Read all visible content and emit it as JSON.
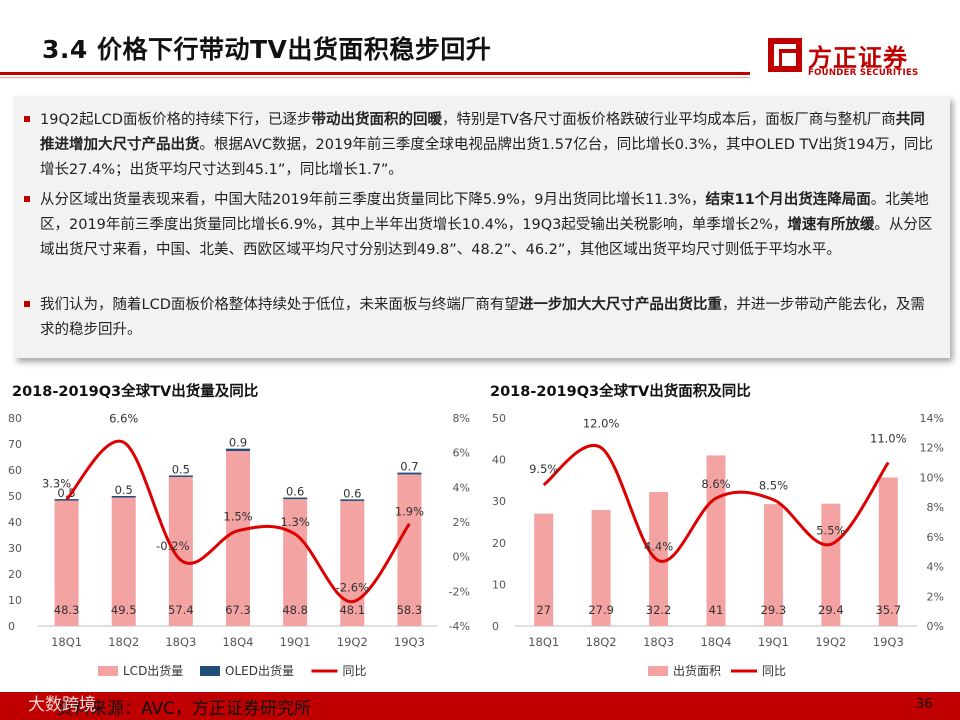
{
  "title": "3.4 价格下行带动TV出货面积稳步回升",
  "logo": {
    "cn": "方正证券",
    "en": "FOUNDER SECURITIES"
  },
  "bullets": [
    {
      "parts": [
        {
          "t": "19Q2起LCD面板价格的持续下行，已逐步"
        },
        {
          "t": "带动出货面积的回暖",
          "b": true
        },
        {
          "t": "，特别是TV各尺寸面板价格跌破行业平均成本后，面板厂商与整机厂商"
        },
        {
          "t": "共同推进增加大尺寸产品出货",
          "b": true
        },
        {
          "t": "。根据AVC数据，2019年前三季度全球电视品牌出货1.57亿台，同比增长0.3%，其中OLED TV出货194万，同比增长27.4%；出货平均尺寸达到45.1”，同比增长1.7”。"
        }
      ]
    },
    {
      "parts": [
        {
          "t": "从分区域出货量表现来看，中国大陆2019年前三季度出货量同比下降5.9%，9月出货同比增长11.3%，"
        },
        {
          "t": "结束11个月出货连降局面",
          "b": true
        },
        {
          "t": "。北美地区，2019年前三季度出货量同比增长6.9%，其中上半年出货增长10.4%，19Q3起受输出关税影响，单季增长2%，"
        },
        {
          "t": "增速有所放缓",
          "b": true
        },
        {
          "t": "。从分区域出货尺寸来看，中国、北美、西欧区域平均尺寸分别达到49.8”、48.2”、46.2”，其他区域出货平均尺寸则低于平均水平。"
        }
      ]
    },
    {
      "parts": [
        {
          "t": "我们认为，随着LCD面板价格整体持续处于低位，未来面板与终端厂商有望"
        },
        {
          "t": "进一步加大大尺寸产品出货比重",
          "b": true
        },
        {
          "t": "，并进一步带动产能去化，及需求的稳步回升。"
        }
      ]
    }
  ],
  "footer": {
    "source": "资料来源：AVC，方正证券研究所",
    "watermark": "大数跨境",
    "page": "36"
  },
  "colors": {
    "accent": "#c00000",
    "bar_pink": "#f4a3a3",
    "bar_oled": "#1f4e79",
    "line_red": "#dd0000"
  },
  "chart_data": [
    {
      "type": "bar",
      "title": "2018-2019Q3全球TV出货量及同比",
      "categories": [
        "18Q1",
        "18Q2",
        "18Q3",
        "18Q4",
        "19Q1",
        "19Q2",
        "19Q3"
      ],
      "series": [
        {
          "name": "LCD出货量",
          "kind": "bar",
          "axis": "left",
          "values": [
            48.3,
            49.5,
            57.4,
            67.3,
            48.8,
            48.1,
            58.3
          ]
        },
        {
          "name": "OLED出货量",
          "kind": "bar-stacked",
          "axis": "left",
          "values": [
            0.5,
            0.5,
            0.5,
            0.9,
            0.6,
            0.6,
            0.7
          ]
        },
        {
          "name": "同比",
          "kind": "line",
          "axis": "right",
          "values": [
            3.3,
            6.6,
            -0.2,
            1.5,
            1.3,
            -2.6,
            1.9
          ],
          "labels": [
            "3.3%",
            "6.6%",
            "-0.2%",
            "1.5%",
            "1.3%",
            "-2.6%",
            "1.9%"
          ]
        }
      ],
      "left_axis": {
        "min": 0,
        "max": 80,
        "ticks": [
          "0",
          "10",
          "20",
          "30",
          "40",
          "50",
          "60",
          "70",
          "80"
        ]
      },
      "right_axis": {
        "min": -4,
        "max": 8,
        "ticks": [
          "-4%",
          "-2%",
          "0%",
          "2%",
          "4%",
          "6%",
          "8%"
        ]
      },
      "legend": "bottom"
    },
    {
      "type": "bar",
      "title": "2018-2019Q3全球TV出货面积及同比",
      "categories": [
        "18Q1",
        "18Q2",
        "18Q3",
        "18Q4",
        "19Q1",
        "19Q2",
        "19Q3"
      ],
      "series": [
        {
          "name": "出货面积",
          "kind": "bar",
          "axis": "left",
          "values": [
            27,
            27.9,
            32.2,
            41,
            29.3,
            29.4,
            35.7
          ]
        },
        {
          "name": "同比",
          "kind": "line",
          "axis": "right",
          "values": [
            9.5,
            12.0,
            4.4,
            8.6,
            8.5,
            5.5,
            11.0
          ],
          "labels": [
            "9.5%",
            "12.0%",
            "4.4%",
            "8.6%",
            "8.5%",
            "5.5%",
            "11.0%"
          ]
        }
      ],
      "left_axis": {
        "min": 0,
        "max": 50,
        "ticks": [
          "0",
          "10",
          "20",
          "30",
          "40",
          "50"
        ]
      },
      "right_axis": {
        "min": 0,
        "max": 14,
        "ticks": [
          "0%",
          "2%",
          "4%",
          "6%",
          "8%",
          "10%",
          "12%",
          "14%"
        ]
      },
      "legend": "bottom"
    }
  ]
}
